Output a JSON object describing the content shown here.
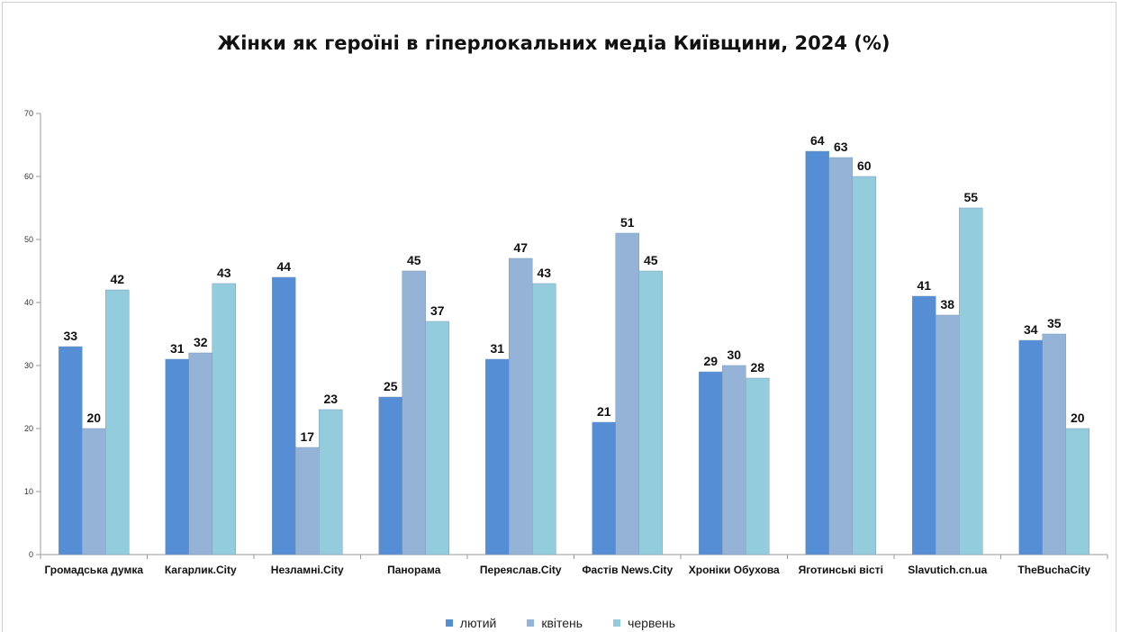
{
  "colors": {
    "feb": "#558ed5",
    "apr": "#95b3d7",
    "jun": "#93cddd"
  },
  "chart_data": {
    "type": "bar",
    "title": "Жінки як героїні в гіперлокальних медіа Київщини, 2024 (%)",
    "xlabel": "",
    "ylabel": "",
    "ylim": [
      0,
      70
    ],
    "yticks": [
      0,
      10,
      20,
      30,
      40,
      50,
      60,
      70
    ],
    "grid": false,
    "legend_position": "bottom",
    "categories": [
      "Громадська думка",
      "Кагарлик.City",
      "Незламні.City",
      "Панорама",
      "Переяслав.City",
      "Фастів News.City",
      "Хроніки Обухова",
      "Яготинські вісті",
      "Slavutich.cn.ua",
      "TheBuchaCity"
    ],
    "series": [
      {
        "name": "лютий",
        "color": "#558ed5",
        "values": [
          33,
          31,
          44,
          25,
          31,
          21,
          29,
          64,
          41,
          34
        ]
      },
      {
        "name": "квітень",
        "color": "#95b3d7",
        "values": [
          20,
          32,
          17,
          45,
          47,
          51,
          30,
          63,
          38,
          35
        ]
      },
      {
        "name": "червень",
        "color": "#93cddd",
        "values": [
          42,
          43,
          23,
          37,
          43,
          45,
          28,
          60,
          55,
          20
        ]
      }
    ]
  }
}
